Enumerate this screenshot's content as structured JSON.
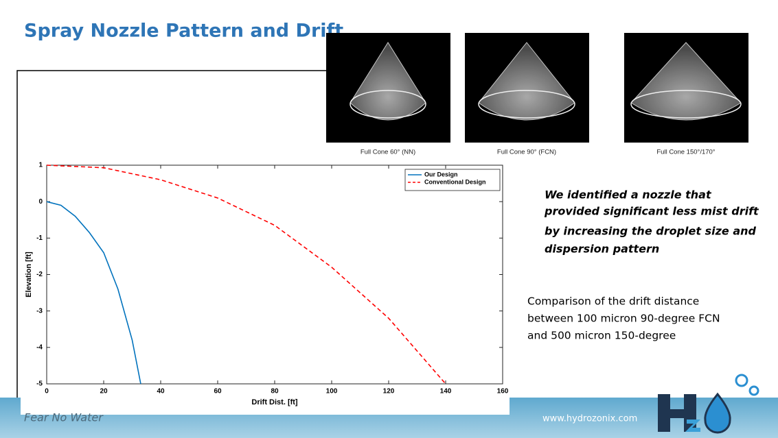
{
  "slide": {
    "title": "Spray Nozzle Pattern and Drift",
    "images": [
      {
        "caption": "Full Cone 60° (NN)"
      },
      {
        "caption": "Full Cone 90° (FCN)"
      },
      {
        "caption": "Full Cone 150°/170°"
      }
    ],
    "statement": [
      "We identified a nozzle that",
      "provided significant less mist drift",
      "by increasing the droplet size and",
      "dispersion pattern"
    ],
    "comparison": [
      "Comparison of the drift distance",
      "between 100 micron 90-degree FCN",
      "and 500 micron 150-degree"
    ]
  },
  "footer": {
    "tagline": "Fear No Water",
    "url": "www.hydrozonix.com"
  },
  "chart_data": {
    "type": "line",
    "x_label": "Drift Dist. [ft]",
    "y_label": "Elevation [ft]",
    "xlim": [
      0,
      160
    ],
    "ylim": [
      -5,
      1
    ],
    "xticks": [
      0,
      20,
      40,
      60,
      80,
      100,
      120,
      140,
      160
    ],
    "yticks": [
      -5,
      -4,
      -3,
      -2,
      -1,
      0,
      1
    ],
    "legend": "upper right",
    "grid": false,
    "series": [
      {
        "name": "Our Design",
        "color": "#0072bd",
        "dash": false,
        "x": [
          0,
          5,
          10,
          15,
          20,
          25,
          30,
          33
        ],
        "values": [
          0,
          -0.1,
          -0.4,
          -0.85,
          -1.4,
          -2.4,
          -3.8,
          -5
        ]
      },
      {
        "name": "Conventional Design",
        "color": "#ff0000",
        "dash": true,
        "x": [
          0,
          20,
          40,
          60,
          80,
          100,
          120,
          140
        ],
        "values": [
          1,
          0.93,
          0.6,
          0.1,
          -0.65,
          -1.8,
          -3.2,
          -5
        ]
      }
    ]
  }
}
